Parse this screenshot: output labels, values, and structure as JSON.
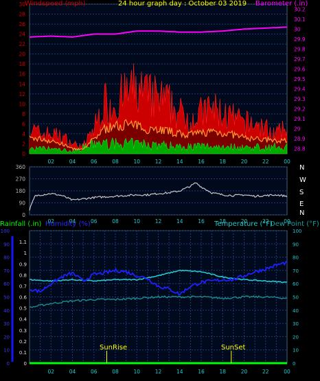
{
  "header": {
    "left_label": "Windspeed (mph)",
    "center_title": "24 hour graph day : October 03 2019",
    "right_label": "Barometer (.in)"
  },
  "compass": [
    "N",
    "W",
    "S",
    "E",
    "N"
  ],
  "lower_header": {
    "rainfall": "Rainfall (.in)",
    "humidity": "Humidity (%)",
    "temperature": "Temperature (°F)",
    "dewpoint": "Dew Point (°F)"
  },
  "markers": {
    "sunrise": "SunRise",
    "sunset": "SunSet"
  },
  "colors": {
    "wind": "#cc0000",
    "wind_avg": "#ff9933",
    "wind_low": "#00aa00",
    "baro": "#ff00ff",
    "direction": "#c8c8c8",
    "humidity": "#1f1fff",
    "temperature": "#22c8d0",
    "dewpoint": "#1a8c8c",
    "rain": "#00ff00",
    "rain_axis": "#1515ff",
    "grid": "#1e3a7a",
    "tick_text": "#b8b8b8",
    "title": "#ffff00"
  },
  "chart_data": [
    {
      "type": "area",
      "title": "24 hour graph day : October 03 2019",
      "x_ticks": [
        "02",
        "04",
        "06",
        "08",
        "10",
        "12",
        "14",
        "16",
        "18",
        "20",
        "22",
        "00"
      ],
      "left_axis": {
        "label": "Windspeed (mph)",
        "ticks": [
          0,
          2,
          4,
          6,
          8,
          10,
          12,
          14,
          16,
          18,
          20,
          22,
          24,
          26,
          28,
          30
        ],
        "ylim": [
          0,
          30
        ]
      },
      "right_axis": {
        "label": "Barometer (.in)",
        "ticks": [
          28.8,
          28.9,
          29,
          29.1,
          29.2,
          29.3,
          29.4,
          29.5,
          29.6,
          29.7,
          29.8,
          29.9,
          30,
          30.1,
          30.2
        ],
        "ylim": [
          28.75,
          30.25
        ]
      },
      "series": [
        {
          "name": "Windspeed (mph)",
          "kind": "gust",
          "hours": [
            0,
            1,
            2,
            3,
            4,
            5,
            6,
            7,
            8,
            9,
            10,
            11,
            12,
            13,
            14,
            15,
            16,
            17,
            18,
            19,
            20,
            21,
            22,
            23,
            24
          ],
          "values": [
            5,
            4,
            4,
            3.5,
            2,
            1.5,
            5,
            10,
            10,
            12,
            13,
            11.5,
            11,
            10,
            8,
            7,
            8,
            9,
            8,
            7,
            6,
            6,
            5,
            4,
            5
          ]
        },
        {
          "name": "Windspeed avg",
          "kind": "avg",
          "hours": [
            0,
            1,
            2,
            3,
            4,
            5,
            6,
            7,
            8,
            9,
            10,
            11,
            12,
            13,
            14,
            15,
            16,
            17,
            18,
            19,
            20,
            21,
            22,
            23,
            24
          ],
          "values": [
            3,
            3,
            2.5,
            2,
            1,
            0.8,
            3,
            5,
            5.5,
            6,
            5.5,
            5,
            5,
            4.5,
            4,
            3.8,
            4.2,
            4.5,
            4.2,
            3.8,
            3.2,
            3,
            2.8,
            2.5,
            2.8
          ]
        },
        {
          "name": "Windspeed low",
          "kind": "low",
          "hours": [
            0,
            2,
            4,
            6,
            8,
            10,
            12,
            14,
            16,
            18,
            20,
            22,
            24
          ],
          "values": [
            1,
            1,
            0.5,
            2,
            2,
            2,
            1.8,
            1.5,
            1.5,
            1.5,
            1.3,
            1.3,
            1.5
          ]
        },
        {
          "name": "Barometer (.in)",
          "kind": "baro",
          "hours": [
            0,
            2,
            4,
            6,
            8,
            10,
            12,
            14,
            16,
            18,
            20,
            22,
            24
          ],
          "values": [
            29.92,
            29.93,
            29.92,
            29.95,
            29.95,
            29.98,
            29.98,
            29.97,
            29.97,
            29.98,
            30.0,
            30.01,
            30.02
          ]
        }
      ]
    },
    {
      "type": "line",
      "title": "",
      "x_ticks": [
        "02",
        "04",
        "06",
        "08",
        "10",
        "12",
        "14",
        "16",
        "18",
        "20",
        "22",
        "00"
      ],
      "left_axis": {
        "label": "",
        "ticks": [
          0,
          90,
          180,
          270,
          360
        ],
        "ylim": [
          0,
          360
        ]
      },
      "series": [
        {
          "name": "",
          "hours": [
            0,
            0.5,
            1,
            2,
            3,
            4,
            5,
            6,
            7,
            8,
            9,
            10,
            11,
            12,
            13,
            14,
            15,
            15.5,
            16,
            17,
            18,
            19,
            20,
            21,
            22,
            23,
            24
          ],
          "values": [
            40,
            140,
            150,
            160,
            145,
            110,
            120,
            130,
            135,
            140,
            145,
            150,
            150,
            160,
            165,
            180,
            215,
            240,
            210,
            165,
            150,
            145,
            150,
            140,
            145,
            150,
            140
          ]
        }
      ]
    },
    {
      "type": "line",
      "title": "",
      "x_ticks": [
        "02",
        "04",
        "06",
        "08",
        "10",
        "12",
        "14",
        "16",
        "18",
        "20",
        "22",
        "00"
      ],
      "left_axis": {
        "label": "Humidity (%)",
        "ticks": [
          0,
          10,
          20,
          30,
          40,
          50,
          60,
          70,
          80,
          90,
          100
        ],
        "ylim": [
          0,
          100
        ]
      },
      "rain_axis": {
        "label": "Rainfall (.in)",
        "ticks": [
          0,
          0.1,
          0.2,
          0.3,
          0.4,
          0.5,
          0.6,
          0.7,
          0.8,
          0.9,
          1,
          1.1
        ],
        "ylim": [
          0,
          1.2
        ]
      },
      "right_axis": {
        "label": "Temperature (°F)",
        "ticks": [
          0,
          10,
          20,
          30,
          40,
          50,
          60,
          70,
          80,
          90,
          100
        ],
        "ylim": [
          0,
          100
        ]
      },
      "series": [
        {
          "name": "Humidity (%)",
          "hours": [
            0,
            1,
            2,
            3,
            4,
            5,
            6,
            7,
            8,
            9,
            10,
            11,
            12,
            13,
            14,
            15,
            16,
            17,
            18,
            19,
            20,
            21,
            22,
            23,
            24
          ],
          "values": [
            56,
            54,
            60,
            65,
            68,
            62,
            67,
            68,
            70,
            69,
            66,
            64,
            58,
            56,
            52,
            58,
            61,
            62,
            63,
            63,
            66,
            69,
            71,
            74,
            76
          ]
        },
        {
          "name": "Temperature (°F)",
          "hours": [
            0,
            2,
            4,
            6,
            8,
            10,
            12,
            14,
            16,
            18,
            20,
            22,
            24
          ],
          "values": [
            63,
            62,
            63,
            62,
            63,
            63,
            66,
            70,
            69,
            65,
            63,
            62,
            61
          ]
        },
        {
          "name": "Dew Point (°F)",
          "hours": [
            0,
            2,
            4,
            6,
            8,
            10,
            12,
            14,
            16,
            18,
            20,
            22,
            24
          ],
          "values": [
            42,
            45,
            47,
            48,
            48,
            49,
            50,
            50,
            50,
            49,
            50,
            50,
            49
          ]
        },
        {
          "name": "Rainfall (.in)",
          "hours": [
            0,
            24
          ],
          "values": [
            0,
            0
          ]
        }
      ],
      "sunrise_hour": 7.2,
      "sunset_hour": 18.8
    }
  ]
}
